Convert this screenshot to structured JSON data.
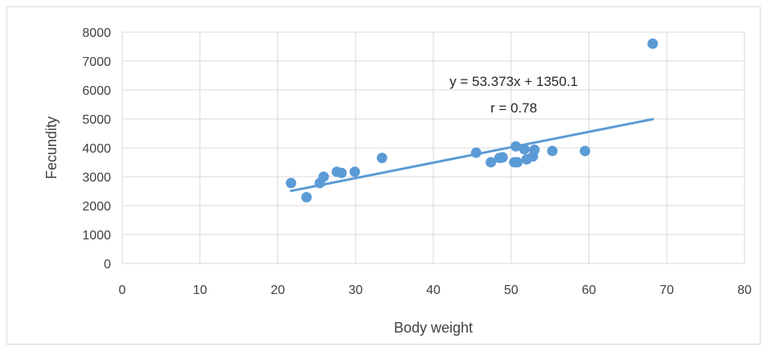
{
  "chart_data": {
    "type": "scatter",
    "title": "",
    "xlabel": "Body weight",
    "ylabel": "Fecundity",
    "xlim": [
      0,
      80
    ],
    "ylim": [
      0,
      8000
    ],
    "xticks": [
      0,
      10,
      20,
      30,
      40,
      50,
      60,
      70,
      80
    ],
    "yticks": [
      0,
      1000,
      2000,
      3000,
      4000,
      5000,
      6000,
      7000,
      8000
    ],
    "grid": true,
    "legend": "none",
    "marker_color": "#5b9bd5",
    "trendline_color": "#5b9bd5",
    "points": [
      {
        "x": 21.7,
        "y": 2780
      },
      {
        "x": 23.7,
        "y": 2290
      },
      {
        "x": 25.4,
        "y": 2780
      },
      {
        "x": 25.9,
        "y": 3000
      },
      {
        "x": 27.6,
        "y": 3170
      },
      {
        "x": 28.2,
        "y": 3130
      },
      {
        "x": 29.9,
        "y": 3170
      },
      {
        "x": 33.4,
        "y": 3650
      },
      {
        "x": 45.5,
        "y": 3830
      },
      {
        "x": 47.4,
        "y": 3500
      },
      {
        "x": 48.5,
        "y": 3650
      },
      {
        "x": 48.9,
        "y": 3670
      },
      {
        "x": 50.4,
        "y": 3500
      },
      {
        "x": 50.6,
        "y": 4050
      },
      {
        "x": 50.8,
        "y": 3500
      },
      {
        "x": 51.7,
        "y": 3950
      },
      {
        "x": 52.0,
        "y": 3600
      },
      {
        "x": 52.8,
        "y": 3700
      },
      {
        "x": 53.0,
        "y": 3930
      },
      {
        "x": 55.3,
        "y": 3890
      },
      {
        "x": 59.5,
        "y": 3890
      },
      {
        "x": 68.2,
        "y": 7600
      }
    ],
    "trendline": {
      "slope": 53.373,
      "intercept": 1350.1,
      "x_start": 21.7,
      "x_end": 68.2
    },
    "annotations": {
      "equation": "y = 53.373x + 1350.1",
      "r": "r = 0.78"
    }
  }
}
